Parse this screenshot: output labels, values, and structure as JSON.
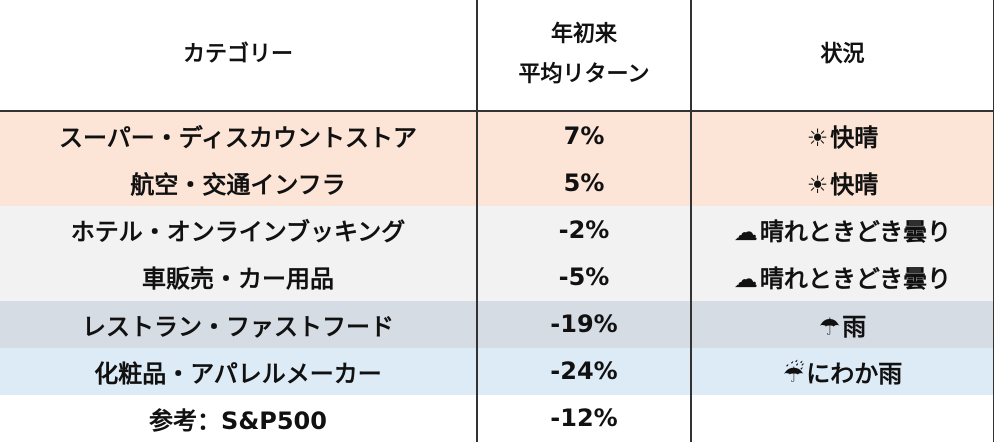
{
  "header": {
    "category": "カテゴリー",
    "ytd_line1": "年初来",
    "ytd_line2": "平均リターン",
    "status": "状況"
  },
  "rows": [
    {
      "category": "スーパー・ディスカウントストア",
      "return": "7%",
      "icon": "☀",
      "icon_name": "sun-icon",
      "status": "快晴",
      "bg": "#fce4d6"
    },
    {
      "category": "航空・交通インフラ",
      "return": "5%",
      "icon": "☀",
      "icon_name": "sun-icon",
      "status": "快晴",
      "bg": "#fce4d6"
    },
    {
      "category": "ホテル・オンラインブッキング",
      "return": "-2%",
      "icon": "☁",
      "icon_name": "cloud-icon",
      "status": "晴れときどき曇り",
      "bg": "#f2f2f2"
    },
    {
      "category": "車販売・カー用品",
      "return": "-5%",
      "icon": "☁",
      "icon_name": "cloud-icon",
      "status": "晴れときどき曇り",
      "bg": "#f2f2f2"
    },
    {
      "category": "レストラン・ファストフード",
      "return": "-19%",
      "icon": "☂",
      "icon_name": "umbrella-icon",
      "status": "雨",
      "bg": "#d6dce4"
    },
    {
      "category": "化粧品・アパレルメーカー",
      "return": "-24%",
      "icon": "☔",
      "icon_name": "rain-icon",
      "status": "にわか雨",
      "bg": "#ddebf7"
    },
    {
      "category": "参考：S&P500",
      "return": "-12%",
      "icon": "",
      "icon_name": "",
      "status": "",
      "bg": "#ffffff"
    }
  ]
}
